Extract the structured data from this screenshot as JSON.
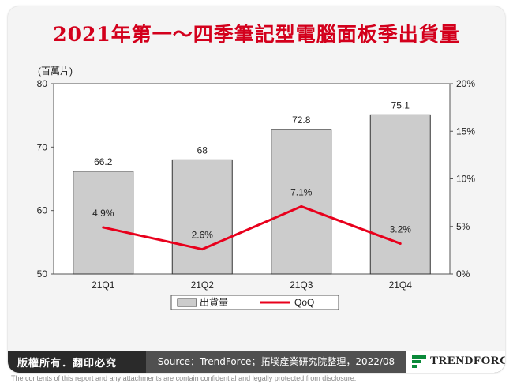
{
  "title": "2021年第一～四季筆記型電腦面板季出貨量",
  "chart_data": {
    "type": "bar",
    "categories": [
      "21Q1",
      "21Q2",
      "21Q3",
      "21Q4"
    ],
    "series": [
      {
        "name": "出貨量",
        "type": "bar",
        "axis": "left",
        "values": [
          66.2,
          68,
          72.8,
          75.1
        ],
        "labels": [
          "66.2",
          "68",
          "72.8",
          "75.1"
        ],
        "color": "#cccccc"
      },
      {
        "name": "QoQ",
        "type": "line",
        "axis": "right",
        "values": [
          4.9,
          2.6,
          7.1,
          3.2
        ],
        "labels": [
          "4.9%",
          "2.6%",
          "7.1%",
          "3.2%"
        ],
        "color": "#e8001c"
      }
    ],
    "y_left": {
      "unit_label": "(百萬片)",
      "range": [
        50,
        80
      ],
      "ticks": [
        "50",
        "60",
        "70",
        "80"
      ]
    },
    "y_right": {
      "range": [
        0,
        20
      ],
      "ticks": [
        "0%",
        "5%",
        "10%",
        "15%",
        "20%"
      ]
    },
    "grid": false,
    "legend_position": "bottom"
  },
  "footer": {
    "rights": "版權所有．翻印必究",
    "source": "Source：TrendForce；拓墣產業研究院整理，2022/08",
    "brand": "TRENDFORCE"
  },
  "disclaimer": "The contents of this report and any attachments are contain confidential and legally protected from disclosure."
}
